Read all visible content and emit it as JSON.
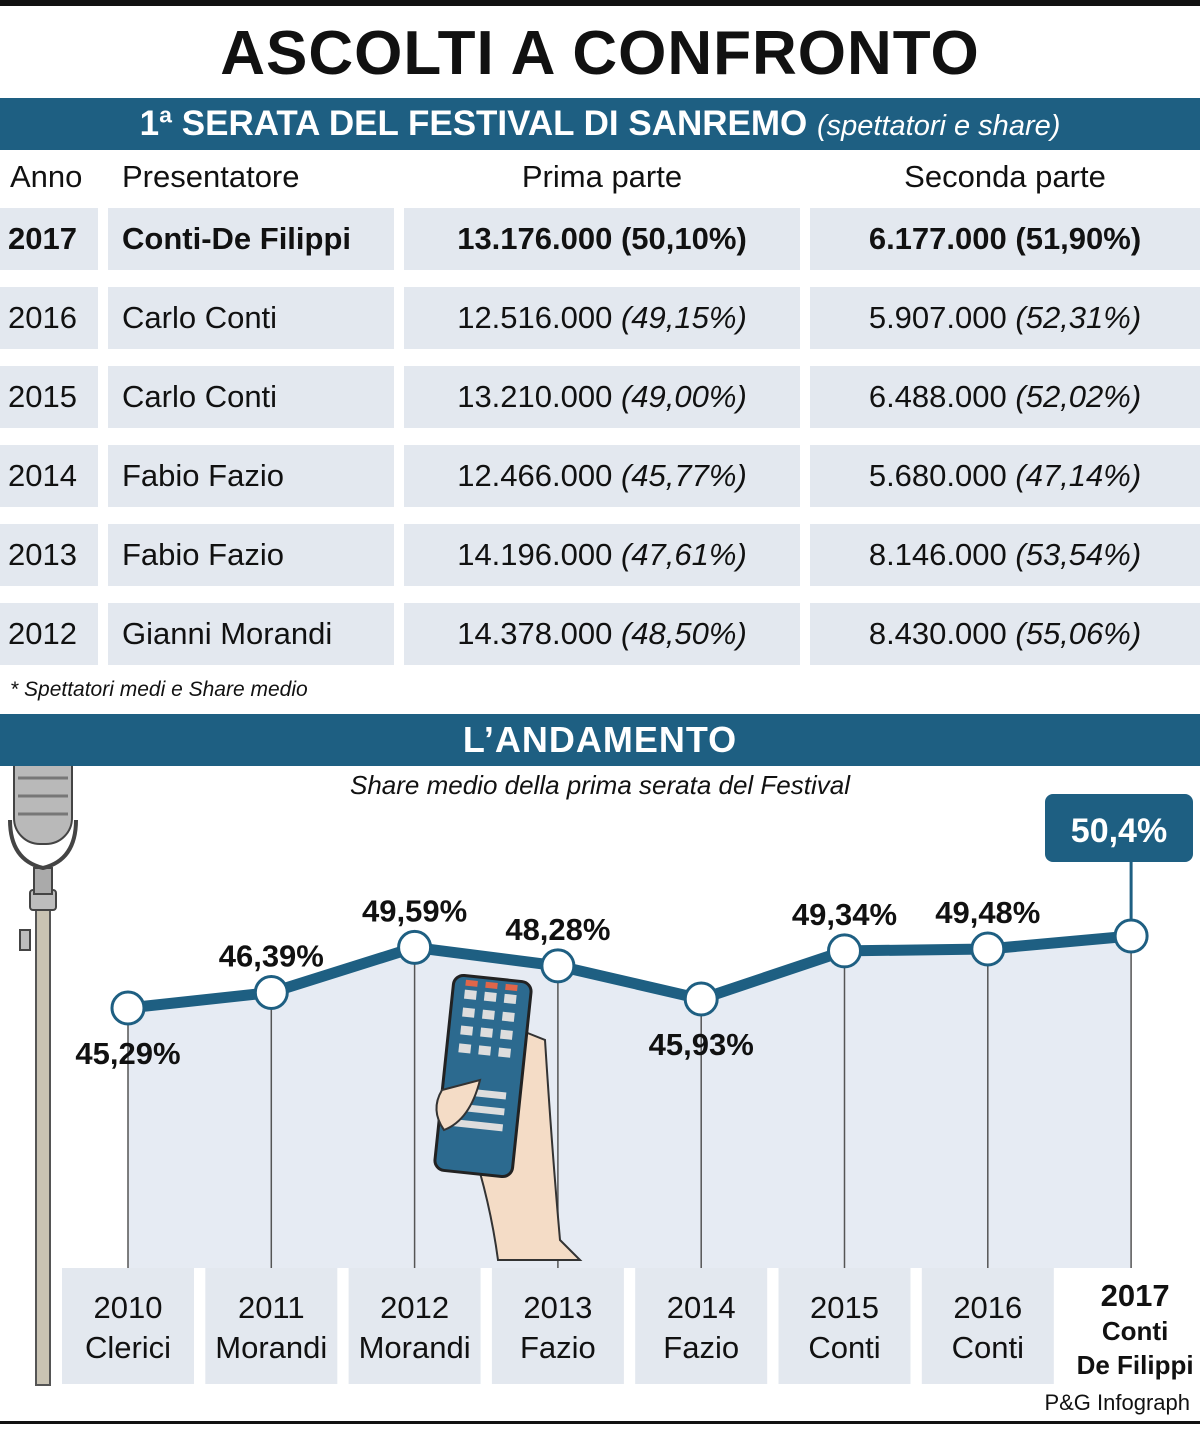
{
  "title": "ASCOLTI A CONFRONTO",
  "section1": {
    "title": "1ª SERATA DEL FESTIVAL DI SANREMO",
    "subtitle": "(spettatori e share)"
  },
  "table": {
    "headers": {
      "anno": "Anno",
      "presentatore": "Presentatore",
      "prima": "Prima parte",
      "seconda": "Seconda parte"
    },
    "rows": [
      {
        "anno": "2017",
        "presentatore": "Conti-De Filippi",
        "prima_spettatori": "13.176.000",
        "prima_share": "(50,10%)",
        "seconda_spettatori": "6.177.000",
        "seconda_share": "(51,90%)"
      },
      {
        "anno": "2016",
        "presentatore": "Carlo Conti",
        "prima_spettatori": "12.516.000",
        "prima_share": "(49,15%)",
        "seconda_spettatori": "5.907.000",
        "seconda_share": "(52,31%)"
      },
      {
        "anno": "2015",
        "presentatore": "Carlo Conti",
        "prima_spettatori": "13.210.000",
        "prima_share": "(49,00%)",
        "seconda_spettatori": "6.488.000",
        "seconda_share": "(52,02%)"
      },
      {
        "anno": "2014",
        "presentatore": "Fabio Fazio",
        "prima_spettatori": "12.466.000",
        "prima_share": "(45,77%)",
        "seconda_spettatori": "5.680.000",
        "seconda_share": "(47,14%)"
      },
      {
        "anno": "2013",
        "presentatore": "Fabio Fazio",
        "prima_spettatori": "14.196.000",
        "prima_share": "(47,61%)",
        "seconda_spettatori": "8.146.000",
        "seconda_share": "(53,54%)"
      },
      {
        "anno": "2012",
        "presentatore": "Gianni Morandi",
        "prima_spettatori": "14.378.000",
        "prima_share": "(48,50%)",
        "seconda_spettatori": "8.430.000",
        "seconda_share": "(55,06%)"
      }
    ],
    "note": "* Spettatori medi e Share medio"
  },
  "section2": {
    "title": "L’ANDAMENTO"
  },
  "chart_data": {
    "type": "line",
    "title": "Share medio della prima serata del Festival",
    "categories": [
      [
        "2010",
        "Clerici"
      ],
      [
        "2011",
        "Morandi"
      ],
      [
        "2012",
        "Morandi"
      ],
      [
        "2013",
        "Fazio"
      ],
      [
        "2014",
        "Fazio"
      ],
      [
        "2015",
        "Conti"
      ],
      [
        "2016",
        "Conti"
      ],
      [
        "2017",
        "Conti",
        "De Filippi"
      ]
    ],
    "values": [
      45.29,
      46.39,
      49.59,
      48.28,
      45.93,
      49.34,
      49.48,
      50.4
    ],
    "labels": [
      "45,29%",
      "46,39%",
      "49,59%",
      "48,28%",
      "45,93%",
      "49,34%",
      "49,48%",
      "50,4%"
    ],
    "highlight_index": 7,
    "colors": {
      "line": "#1e5f82",
      "callout": "#1e5f82",
      "category_box": "#e3e8ef",
      "area": "#e6ebf3"
    }
  },
  "credit": "P&G Infograph"
}
